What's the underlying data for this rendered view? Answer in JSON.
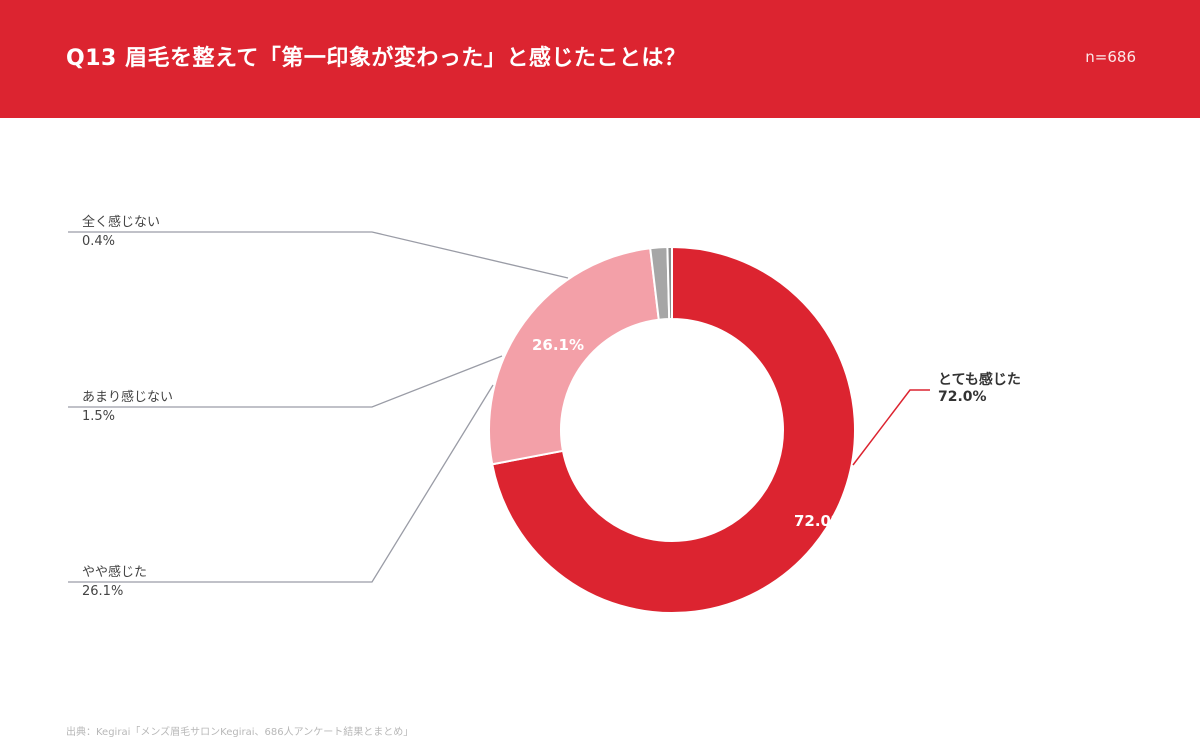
{
  "header": {
    "title": "Q13 眉毛を整えて「第一印象が変わった」と感じたことは？",
    "sample_size": "n=686"
  },
  "chart_data": {
    "type": "pie",
    "donut": true,
    "categories": [
      "とても感じた",
      "やや感じた",
      "あまり感じない",
      "全く感じない"
    ],
    "values": [
      72.0,
      26.1,
      1.5,
      0.4
    ],
    "value_labels": [
      "72.0%",
      "26.1%",
      "1.5%",
      "0.4%"
    ],
    "colors": [
      "#dc2430",
      "#f3a0a8",
      "#a6a6a6",
      "#8c8c8c"
    ],
    "legend": "callout labels"
  },
  "footer": {
    "source": "出典：Kegirai「メンズ眉毛サロンKegirai、686人アンケート結果とまとめ」"
  }
}
